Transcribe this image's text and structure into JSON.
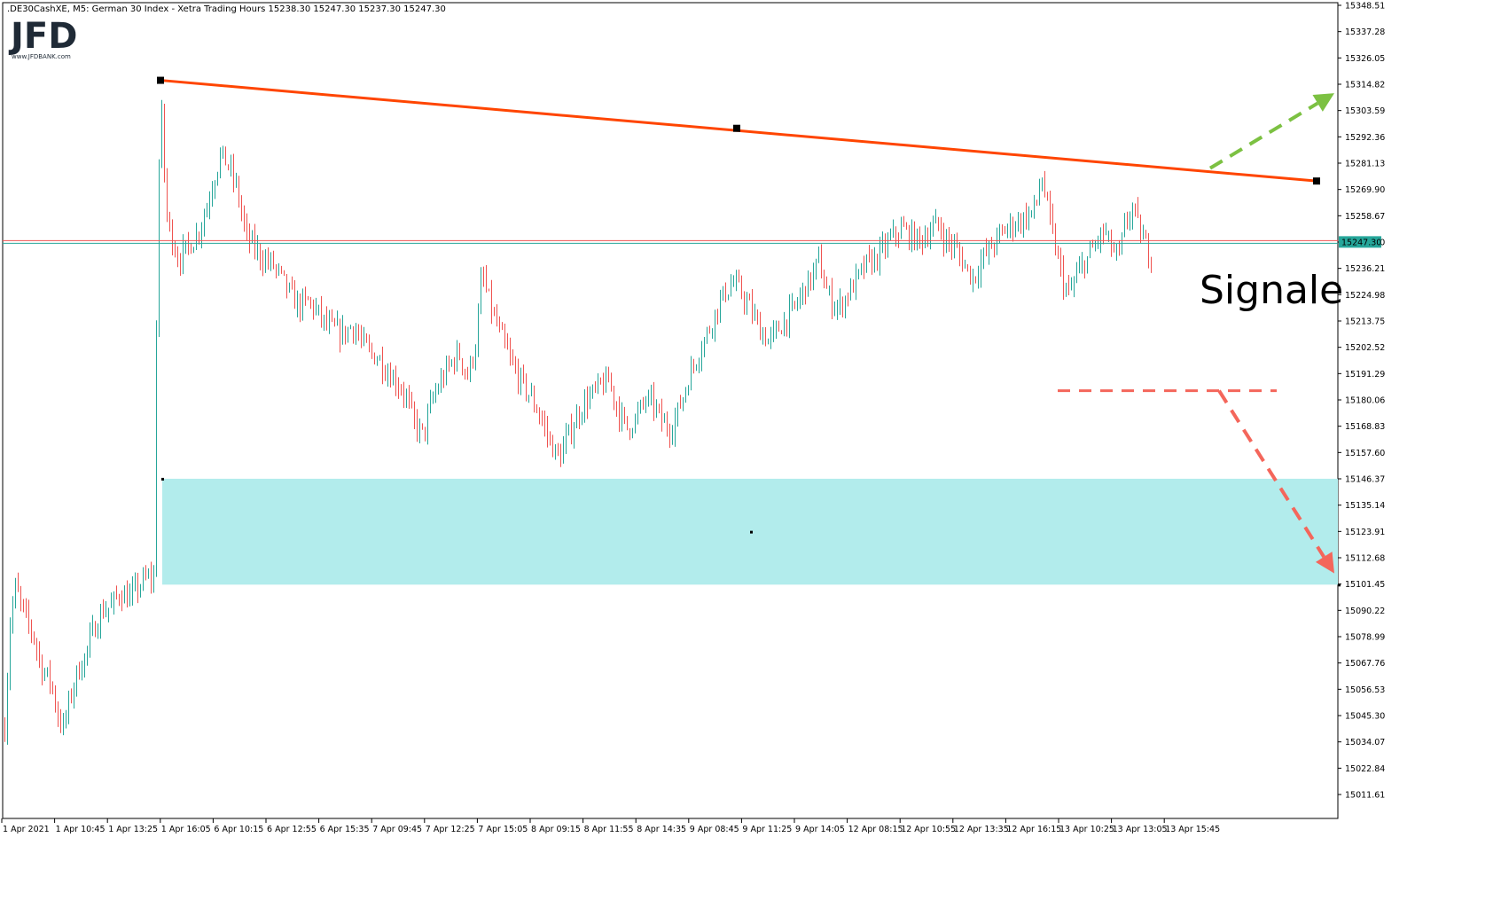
{
  "header": {
    "symbol_info": ".DE30CashXE, M5:  German 30 Index  - Xetra Trading Hours  15238.30 15247.30 15237.30 15247.30"
  },
  "logo": {
    "brand": "JFD",
    "website": "www.JFDBANK.com"
  },
  "annotation": {
    "signal_label": "Signale"
  },
  "current_price_tag": "15247.30",
  "colors": {
    "bull_candle": "#26a69a",
    "bear_candle": "#ef5350",
    "resistance_line": "#ff4500",
    "support_zone": "#b2ecec",
    "bull_arrow": "#7cc142",
    "bear_arrow": "#f4665b",
    "price_line_red": "#ef5350",
    "price_line_green": "#26a69a",
    "price_tag_bg": "#26a69a"
  },
  "chart_data": {
    "type": "candlestick",
    "symbol": ".DE30CashXE",
    "timeframe": "M5",
    "ylim": [
      15000.4,
      15348.51
    ],
    "y_ticks": [
      "15348.51",
      "15337.28",
      "15326.05",
      "15314.82",
      "15303.59",
      "15292.36",
      "15281.13",
      "15269.90",
      "15258.67",
      "15247.30",
      "15236.21",
      "15224.98",
      "15213.75",
      "15202.52",
      "15191.29",
      "15180.06",
      "15168.83",
      "15157.60",
      "15146.37",
      "15135.14",
      "15123.91",
      "15112.68",
      "15101.45",
      "15090.22",
      "15078.99",
      "15067.76",
      "15056.53",
      "15045.30",
      "15034.07",
      "15022.84",
      "15011.61"
    ],
    "x_ticks": [
      "1 Apr 2021",
      "1 Apr 10:45",
      "1 Apr 13:25",
      "1 Apr 16:05",
      "6 Apr 10:15",
      "6 Apr 12:55",
      "6 Apr 15:35",
      "7 Apr 09:45",
      "7 Apr 12:25",
      "7 Apr 15:05",
      "8 Apr 09:15",
      "8 Apr 11:55",
      "8 Apr 14:35",
      "9 Apr 08:45",
      "9 Apr 11:25",
      "9 Apr 14:05",
      "12 Apr 08:15",
      "12 Apr 10:55",
      "12 Apr 13:35",
      "12 Apr 16:15",
      "13 Apr 10:25",
      "13 Apr 13:05",
      "13 Apr 15:45"
    ],
    "price_path": [
      [
        0,
        15040
      ],
      [
        6,
        15085
      ],
      [
        12,
        15100
      ],
      [
        22,
        15088
      ],
      [
        32,
        15080
      ],
      [
        42,
        15065
      ],
      [
        52,
        15060
      ],
      [
        60,
        15045
      ],
      [
        66,
        15040
      ],
      [
        72,
        15050
      ],
      [
        80,
        15062
      ],
      [
        90,
        15070
      ],
      [
        100,
        15082
      ],
      [
        110,
        15090
      ],
      [
        120,
        15092
      ],
      [
        130,
        15098
      ],
      [
        140,
        15095
      ],
      [
        150,
        15100
      ],
      [
        160,
        15104
      ],
      [
        168,
        15104
      ],
      [
        172,
        15250
      ],
      [
        176,
        15310
      ],
      [
        182,
        15260
      ],
      [
        188,
        15250
      ],
      [
        196,
        15240
      ],
      [
        206,
        15245
      ],
      [
        216,
        15250
      ],
      [
        226,
        15260
      ],
      [
        236,
        15275
      ],
      [
        244,
        15285
      ],
      [
        252,
        15280
      ],
      [
        262,
        15270
      ],
      [
        272,
        15250
      ],
      [
        282,
        15245
      ],
      [
        292,
        15240
      ],
      [
        302,
        15238
      ],
      [
        312,
        15232
      ],
      [
        322,
        15225
      ],
      [
        332,
        15220
      ],
      [
        342,
        15222
      ],
      [
        352,
        15218
      ],
      [
        362,
        15212
      ],
      [
        372,
        15210
      ],
      [
        382,
        15208
      ],
      [
        392,
        15212
      ],
      [
        402,
        15205
      ],
      [
        412,
        15200
      ],
      [
        422,
        15198
      ],
      [
        432,
        15192
      ],
      [
        442,
        15188
      ],
      [
        452,
        15182
      ],
      [
        462,
        15170
      ],
      [
        472,
        15165
      ],
      [
        482,
        15180
      ],
      [
        492,
        15188
      ],
      [
        502,
        15195
      ],
      [
        512,
        15200
      ],
      [
        522,
        15190
      ],
      [
        532,
        15205
      ],
      [
        538,
        15235
      ],
      [
        544,
        15225
      ],
      [
        552,
        15215
      ],
      [
        562,
        15205
      ],
      [
        572,
        15195
      ],
      [
        582,
        15188
      ],
      [
        592,
        15182
      ],
      [
        602,
        15175
      ],
      [
        612,
        15165
      ],
      [
        620,
        15158
      ],
      [
        626,
        15155
      ],
      [
        632,
        15162
      ],
      [
        642,
        15170
      ],
      [
        652,
        15178
      ],
      [
        662,
        15182
      ],
      [
        672,
        15186
      ],
      [
        682,
        15188
      ],
      [
        692,
        15175
      ],
      [
        702,
        15168
      ],
      [
        712,
        15172
      ],
      [
        722,
        15180
      ],
      [
        732,
        15178
      ],
      [
        742,
        15170
      ],
      [
        752,
        15168
      ],
      [
        762,
        15178
      ],
      [
        772,
        15190
      ],
      [
        782,
        15200
      ],
      [
        792,
        15208
      ],
      [
        802,
        15218
      ],
      [
        812,
        15226
      ],
      [
        822,
        15230
      ],
      [
        832,
        15225
      ],
      [
        842,
        15218
      ],
      [
        852,
        15210
      ],
      [
        862,
        15205
      ],
      [
        872,
        15210
      ],
      [
        882,
        15215
      ],
      [
        892,
        15220
      ],
      [
        902,
        15228
      ],
      [
        910,
        15232
      ],
      [
        918,
        15240
      ],
      [
        924,
        15230
      ],
      [
        932,
        15222
      ],
      [
        942,
        15220
      ],
      [
        952,
        15226
      ],
      [
        962,
        15232
      ],
      [
        972,
        15238
      ],
      [
        982,
        15240
      ],
      [
        992,
        15245
      ],
      [
        1002,
        15250
      ],
      [
        1012,
        15253
      ],
      [
        1022,
        15250
      ],
      [
        1032,
        15248
      ],
      [
        1042,
        15252
      ],
      [
        1052,
        15255
      ],
      [
        1062,
        15248
      ],
      [
        1072,
        15245
      ],
      [
        1082,
        15238
      ],
      [
        1092,
        15232
      ],
      [
        1102,
        15240
      ],
      [
        1112,
        15245
      ],
      [
        1122,
        15250
      ],
      [
        1132,
        15254
      ],
      [
        1142,
        15256
      ],
      [
        1152,
        15258
      ],
      [
        1162,
        15262
      ],
      [
        1170,
        15275
      ],
      [
        1176,
        15262
      ],
      [
        1182,
        15250
      ],
      [
        1188,
        15240
      ],
      [
        1194,
        15230
      ],
      [
        1200,
        15225
      ],
      [
        1208,
        15232
      ],
      [
        1216,
        15238
      ],
      [
        1224,
        15242
      ],
      [
        1232,
        15248
      ],
      [
        1240,
        15252
      ],
      [
        1248,
        15245
      ],
      [
        1256,
        15240
      ],
      [
        1264,
        15255
      ],
      [
        1272,
        15262
      ],
      [
        1280,
        15252
      ],
      [
        1288,
        15245
      ],
      [
        1294,
        15240
      ]
    ],
    "resistance_line": {
      "label": "",
      "points": [
        [
          176,
          15316.5
        ],
        [
          826,
          15296.0
        ],
        [
          1480,
          15273.5
        ]
      ]
    },
    "support_zone": {
      "y_top": 15146.4,
      "y_bottom": 15101.2
    },
    "support_level": {
      "y": 15184.0
    },
    "current_price": 15247.3,
    "bullish_arrow": {
      "from_index": 1360,
      "from_price": 15279.0,
      "to_index": 1500,
      "to_price": 15311.0
    },
    "bearish_arrow": {
      "from_index": 1370,
      "from_price": 15184.0,
      "to_index": 1500,
      "to_price": 15106.0
    }
  }
}
